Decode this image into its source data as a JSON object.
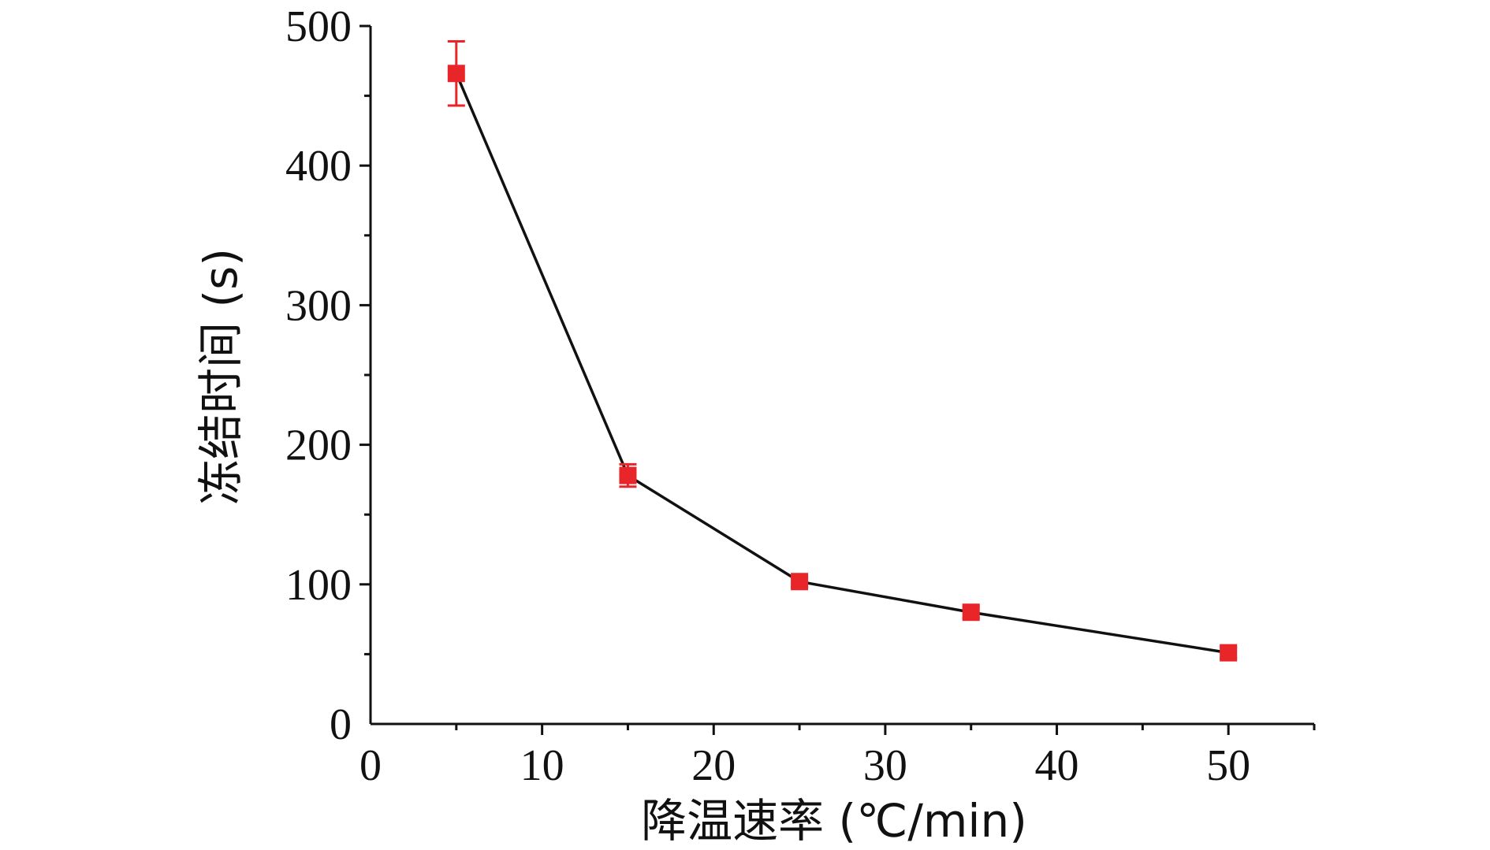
{
  "chart_data": {
    "type": "line",
    "title": "",
    "xlabel": "降温速率 (℃/min)",
    "ylabel": "冻结时间 (s)",
    "xlim": [
      0,
      55
    ],
    "ylim": [
      0,
      500
    ],
    "x_ticks": [
      "0",
      "10",
      "20",
      "30",
      "40",
      "50"
    ],
    "y_ticks": [
      "0",
      "100",
      "200",
      "300",
      "400",
      "500"
    ],
    "grid": false,
    "series": [
      {
        "x": [
          5,
          15,
          25,
          35,
          50
        ],
        "values": [
          466,
          178,
          102,
          80,
          51
        ],
        "error": [
          23,
          8,
          4,
          4,
          4
        ],
        "line_color": "#111111",
        "marker_color": "#e8262a",
        "marker": "square"
      }
    ]
  }
}
